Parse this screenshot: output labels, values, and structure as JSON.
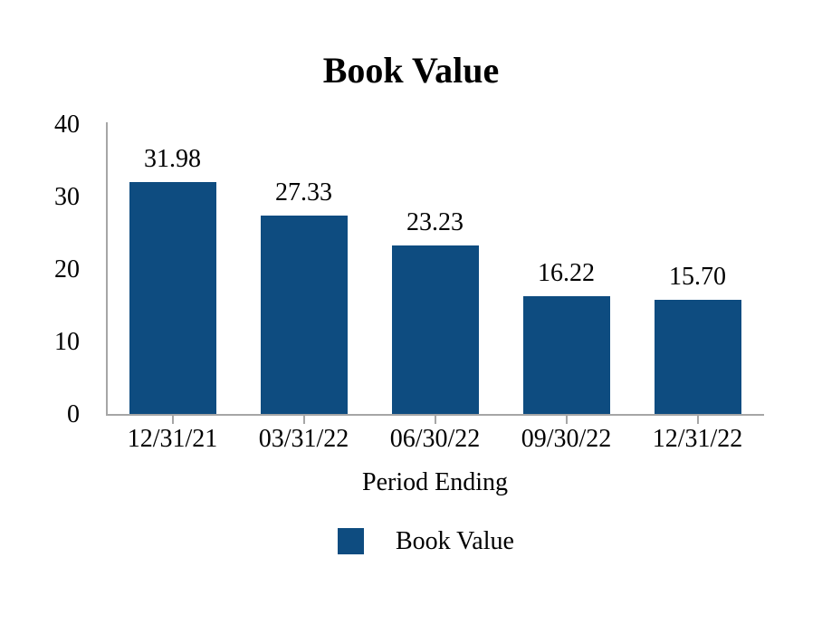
{
  "title": "Book Value",
  "colors": {
    "bar": "#0e4c80",
    "axis": "#a6a6a6",
    "text": "#000000",
    "background": "#ffffff"
  },
  "chart_data": {
    "type": "bar",
    "title": "Book Value",
    "categories": [
      "12/31/21",
      "03/31/22",
      "06/30/22",
      "09/30/22",
      "12/31/22"
    ],
    "values": [
      31.98,
      27.33,
      23.23,
      16.22,
      15.7
    ],
    "value_labels": [
      "31.98",
      "27.33",
      "23.23",
      "16.22",
      "15.70"
    ],
    "xlabel": "Period Ending",
    "ylabel": "",
    "ylim": [
      0,
      40
    ],
    "yticks": [
      0,
      10,
      20,
      30,
      40
    ],
    "grid": false,
    "data_labels_shown": true,
    "legend": {
      "position": "bottom",
      "entries": [
        {
          "label": "Book Value",
          "color": "#0e4c80"
        }
      ]
    }
  }
}
